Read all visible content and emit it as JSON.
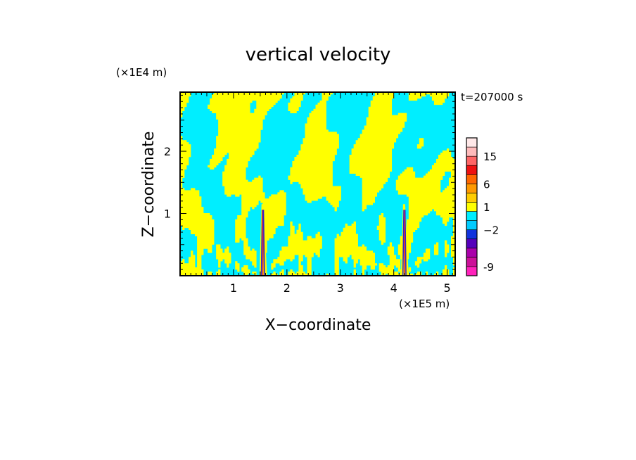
{
  "chart_data": {
    "type": "heatmap",
    "title": "vertical velocity",
    "xlabel": "X−coordinate",
    "ylabel": "Z−coordinate",
    "x_unit": "(×1E5 m)",
    "y_unit": "(×1E4 m)",
    "time_label": "t=207000 s",
    "xlim": [
      0,
      5.15
    ],
    "ylim": [
      0,
      2.95
    ],
    "x_ticks": [
      1,
      2,
      3,
      4,
      5
    ],
    "x_tick_labels": [
      "1",
      "2",
      "3",
      "4",
      "5"
    ],
    "y_ticks": [
      1,
      2
    ],
    "y_tick_labels": [
      "1",
      "2"
    ],
    "colorbar": {
      "levels": [
        {
          "color": "#ff22bb"
        },
        {
          "color": "#cc1199"
        },
        {
          "color": "#aa00aa"
        },
        {
          "color": "#5500bb"
        },
        {
          "color": "#1133dd"
        },
        {
          "color": "#00ccff"
        },
        {
          "color": "#00eeff"
        },
        {
          "color": "#ffff00"
        },
        {
          "color": "#ffcc00"
        },
        {
          "color": "#ff9900"
        },
        {
          "color": "#ff6600"
        },
        {
          "color": "#ee1111"
        },
        {
          "color": "#ff6666"
        },
        {
          "color": "#ffbbbb"
        },
        {
          "color": "#ffe8e8"
        }
      ],
      "tick_labels": [
        {
          "value": "-9",
          "at_level": 1
        },
        {
          "value": "−2",
          "at_level": 5
        },
        {
          "value": "1",
          "at_level": 7.5
        },
        {
          "value": "6",
          "at_level": 10
        },
        {
          "value": "15",
          "at_level": 13
        }
      ]
    },
    "field_colors": {
      "positive": "#ffff00",
      "negative": "#00eeff",
      "jet_core": "#3322cc",
      "jet_edge": "#ee3322"
    }
  }
}
